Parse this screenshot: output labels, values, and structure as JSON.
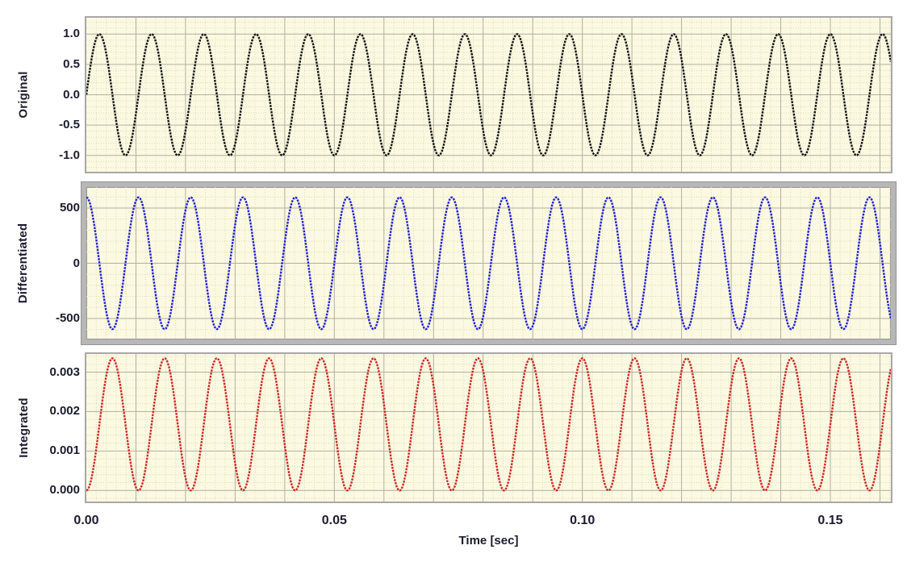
{
  "chart_data": {
    "type": "line",
    "title": "",
    "xlabel": "Time [sec]",
    "xaxis": {
      "xlim": [
        0,
        0.1622
      ],
      "ticks": [
        {
          "value": 0.0,
          "label": "0.00"
        },
        {
          "value": 0.05,
          "label": "0.05"
        },
        {
          "value": 0.1,
          "label": "0.10"
        },
        {
          "value": 0.15,
          "label": "0.15"
        }
      ],
      "major_grid_step_sec": 0.01,
      "minor_grid_step_sec": 0.002,
      "grid": "on"
    },
    "subplots": [
      {
        "ylabel": "Original",
        "curve_color": "#141414",
        "signal": {
          "form": "sin",
          "amplitude": 1,
          "frequency_hz": 95,
          "offset": 0,
          "description": "95 Hz unit sine wave, starts at 0 rising"
        },
        "ylim": [
          -1.27,
          1.27
        ],
        "yticks": [
          {
            "value": 1.0,
            "label": "1.0"
          },
          {
            "value": 0.5,
            "label": "0.5"
          },
          {
            "value": 0.0,
            "label": "0.0"
          },
          {
            "value": -0.5,
            "label": "-0.5"
          },
          {
            "value": -1.0,
            "label": "-1.0"
          }
        ],
        "y_minor_step": 0.1,
        "selected": false
      },
      {
        "ylabel": "Differentiated",
        "curve_color": "#2424cd",
        "signal": {
          "form": "cos",
          "amplitude": 597,
          "frequency_hz": 95,
          "offset": 0,
          "description": "derivative: 2*pi*95*cos, starts at maximum ~+597"
        },
        "ylim": [
          -690,
          690
        ],
        "yticks": [
          {
            "value": 500,
            "label": "500"
          },
          {
            "value": 0,
            "label": "0"
          },
          {
            "value": -500,
            "label": "-500"
          }
        ],
        "y_minor_step": 100,
        "selected": true
      },
      {
        "ylabel": "Integrated",
        "curve_color": "#cc2a2a",
        "signal": {
          "form": "one-minus-cos",
          "amplitude": 0.001675,
          "frequency_hz": 95,
          "offset": 0,
          "description": "integral: (1-cos)/(2*pi*95), oscillates 0 to ~0.00335"
        },
        "ylim": [
          -0.00028,
          0.00346
        ],
        "yticks": [
          {
            "value": 0.003,
            "label": "0.003"
          },
          {
            "value": 0.002,
            "label": "0.002"
          },
          {
            "value": 0.001,
            "label": "0.001"
          },
          {
            "value": 0.0,
            "label": "0.000"
          }
        ],
        "y_minor_step": 0.0002,
        "selected": false
      }
    ],
    "style": {
      "plot_background": "#fbf9e1",
      "grid_major_color": "#b2b0a0",
      "grid_minor_color": "#ded9b9",
      "plot_border_color": "#a8a8a8",
      "selected_border_color": "#b7b7b7",
      "text_color": "#1c1c2e"
    }
  }
}
